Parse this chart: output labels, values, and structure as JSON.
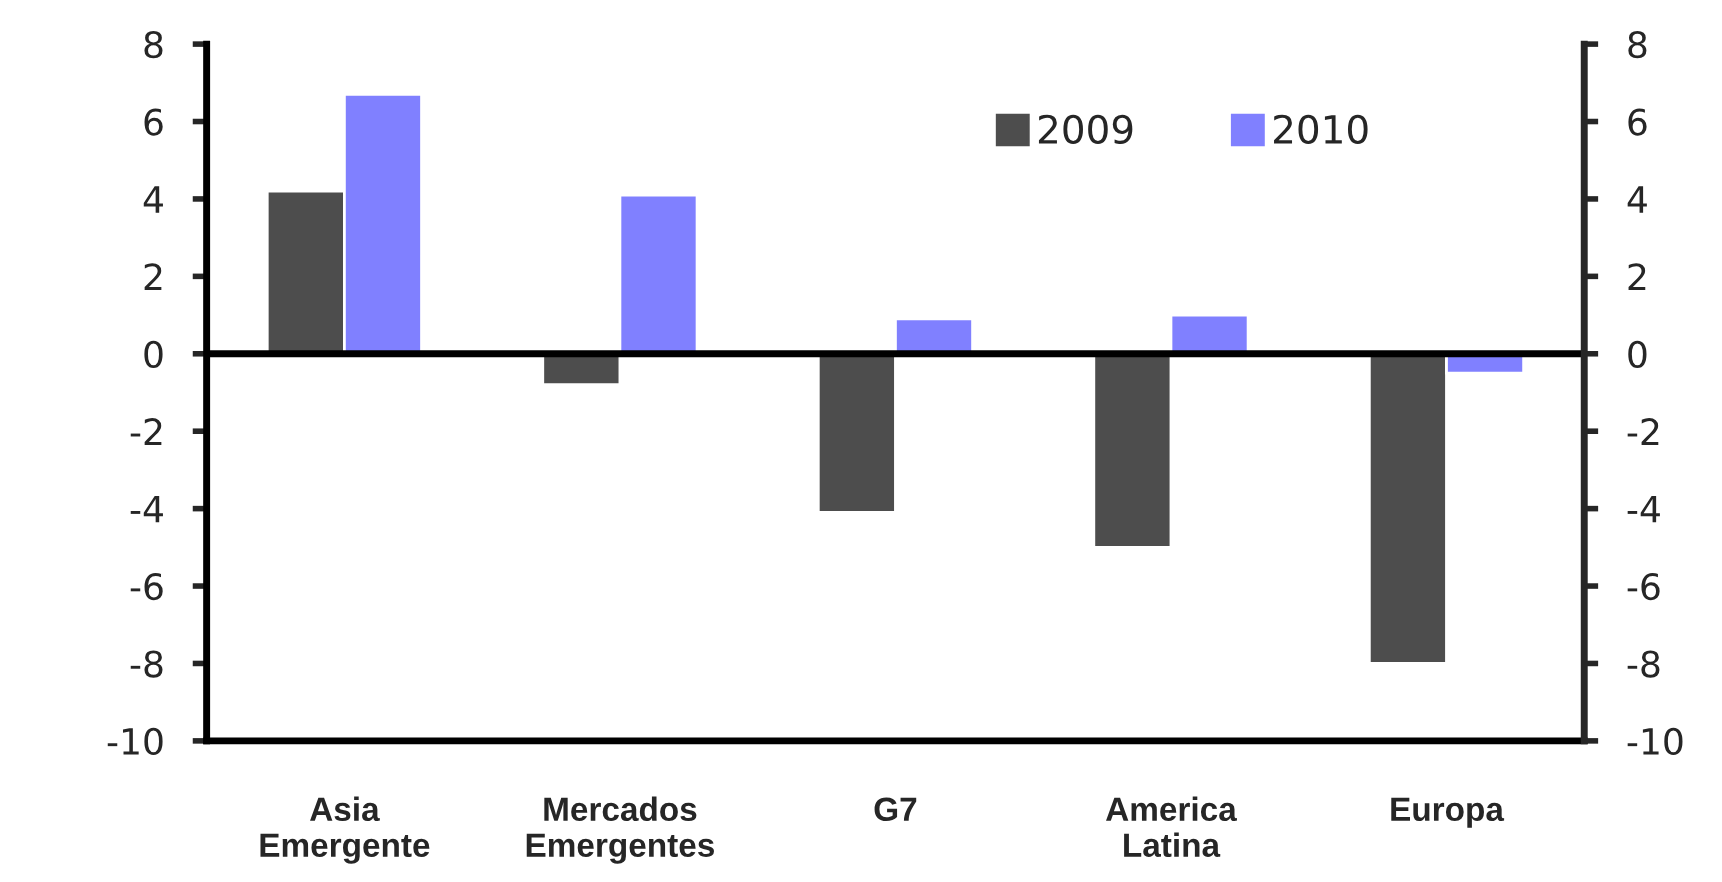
{
  "chart_data": {
    "type": "bar",
    "categories": [
      "Asia\nEmergente",
      "Mercados\nEmergentes",
      "G7",
      "America\nLatina",
      "Europa"
    ],
    "series": [
      {
        "name": "2009",
        "color": "#4d4d4d",
        "values": [
          4.2,
          -0.8,
          -4.1,
          -5.0,
          -8.0
        ]
      },
      {
        "name": "2010",
        "color": "#8080ff",
        "values": [
          6.7,
          4.1,
          0.9,
          1.0,
          -0.5
        ]
      }
    ],
    "ylim": [
      -10,
      8
    ],
    "yticks": [
      -10,
      -8,
      -6,
      -4,
      -2,
      0,
      2,
      4,
      6,
      8
    ],
    "y2lim": [
      -10,
      8
    ],
    "y2ticks": [
      -10,
      -8,
      -6,
      -4,
      -2,
      0,
      2,
      4,
      6,
      8
    ],
    "ref_lines": [
      {
        "axis": "y",
        "value": 0,
        "color": "#000000"
      }
    ],
    "grid": false,
    "legend": "top right"
  }
}
